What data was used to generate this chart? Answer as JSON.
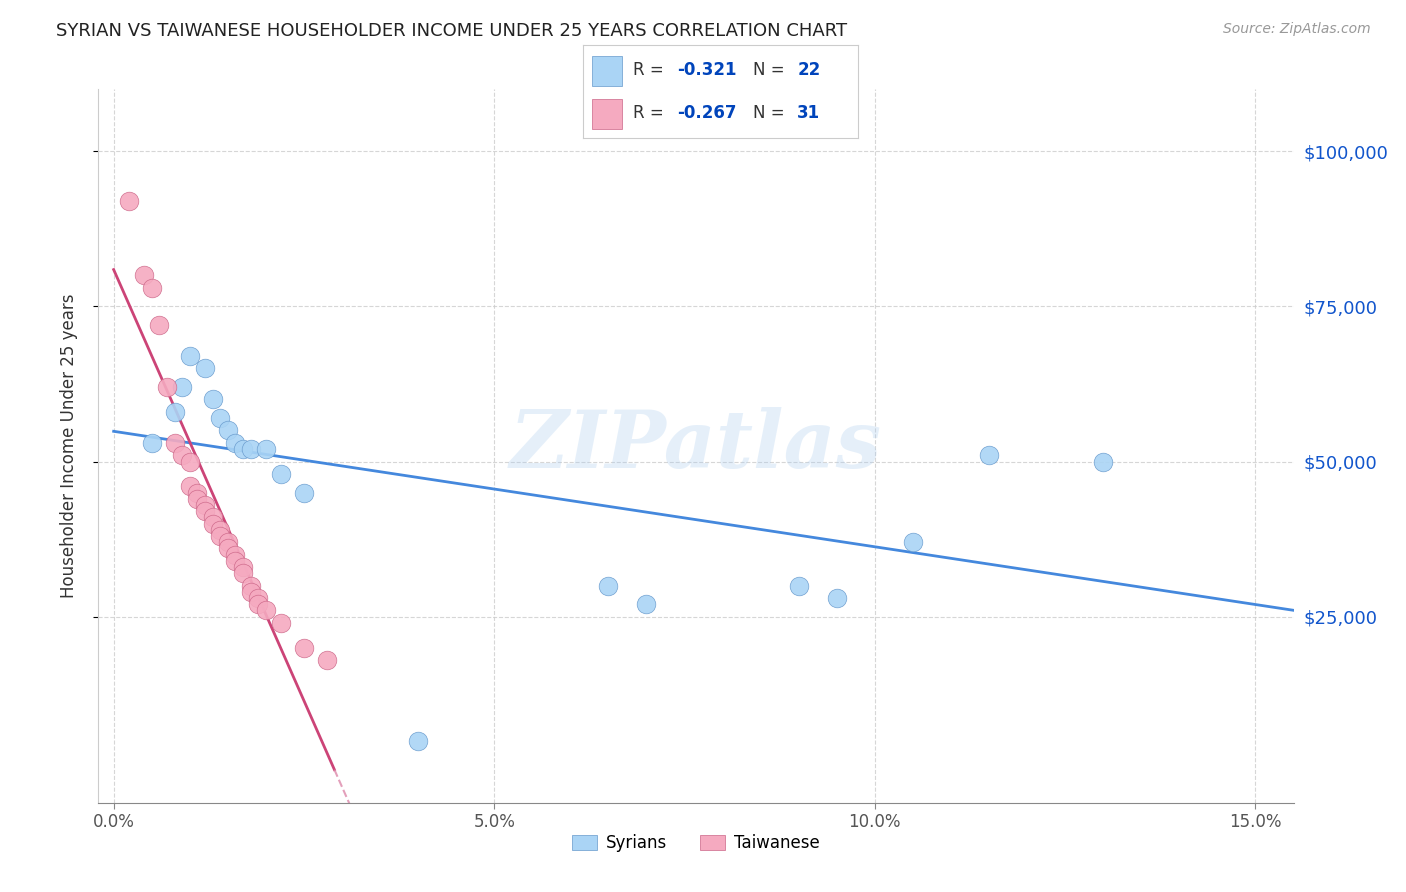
{
  "title": "SYRIAN VS TAIWANESE HOUSEHOLDER INCOME UNDER 25 YEARS CORRELATION CHART",
  "source": "Source: ZipAtlas.com",
  "ylabel": "Householder Income Under 25 years",
  "xlim": [
    -0.002,
    0.155
  ],
  "ylim": [
    -5000,
    110000
  ],
  "ytick_labels": [
    "$25,000",
    "$50,000",
    "$75,000",
    "$100,000"
  ],
  "ytick_values": [
    25000,
    50000,
    75000,
    100000
  ],
  "xtick_values": [
    0.0,
    0.05,
    0.1,
    0.15
  ],
  "xtick_labels": [
    "0.0%",
    "5.0%",
    "10.0%",
    "15.0%"
  ],
  "background_color": "#ffffff",
  "grid_color": "#cccccc",
  "syrians_color": "#aad4f5",
  "taiwanese_color": "#f5aac0",
  "syrians_edge": "#6699cc",
  "taiwanese_edge": "#cc6688",
  "syrians_label": "Syrians",
  "taiwanese_label": "Taiwanese",
  "syrian_R": "-0.321",
  "syrian_N": "22",
  "taiwanese_R": "-0.267",
  "taiwanese_N": "31",
  "legend_R_color": "#0044bb",
  "watermark": "ZIPatlas",
  "syrian_line_color": "#4488dd",
  "taiwanese_line_solid_color": "#cc4477",
  "taiwanese_line_dash_color": "#dd88aa",
  "syrian_x": [
    0.005,
    0.008,
    0.009,
    0.01,
    0.012,
    0.013,
    0.014,
    0.015,
    0.016,
    0.017,
    0.018,
    0.02,
    0.022,
    0.025,
    0.04,
    0.065,
    0.07,
    0.09,
    0.095,
    0.105,
    0.115,
    0.13
  ],
  "syrian_y": [
    53000,
    58000,
    62000,
    67000,
    65000,
    60000,
    57000,
    55000,
    53000,
    52000,
    52000,
    52000,
    48000,
    45000,
    5000,
    30000,
    27000,
    30000,
    28000,
    37000,
    51000,
    50000
  ],
  "taiwanese_x": [
    0.002,
    0.004,
    0.005,
    0.006,
    0.007,
    0.008,
    0.009,
    0.01,
    0.01,
    0.011,
    0.011,
    0.012,
    0.012,
    0.013,
    0.013,
    0.014,
    0.014,
    0.015,
    0.015,
    0.016,
    0.016,
    0.017,
    0.017,
    0.018,
    0.018,
    0.019,
    0.019,
    0.02,
    0.022,
    0.025,
    0.028
  ],
  "taiwanese_y": [
    92000,
    80000,
    78000,
    72000,
    62000,
    53000,
    51000,
    50000,
    46000,
    45000,
    44000,
    43000,
    42000,
    41000,
    40000,
    39000,
    38000,
    37000,
    36000,
    35000,
    34000,
    33000,
    32000,
    30000,
    29000,
    28000,
    27000,
    26000,
    24000,
    20000,
    18000
  ]
}
